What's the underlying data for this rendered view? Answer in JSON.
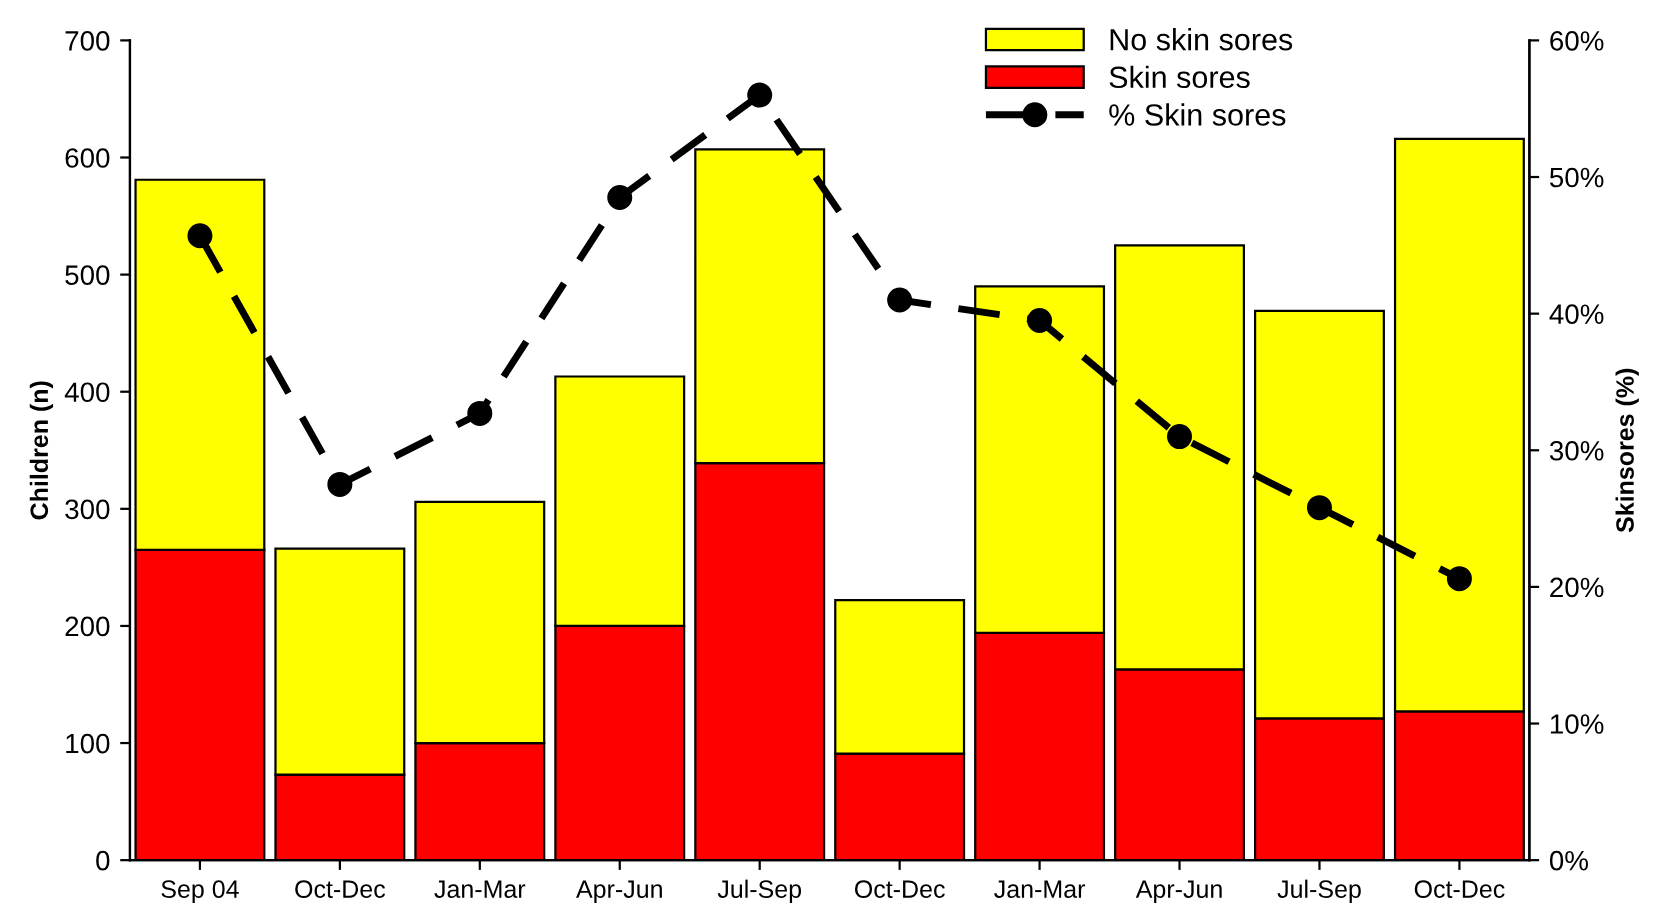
{
  "chart_data": {
    "type": "bar",
    "stacked": true,
    "ylabel": "Children (n)",
    "y2label": "Skinsores (%)",
    "categories": [
      "Sep 04",
      "Oct-Dec",
      "Jan-Mar",
      "Apr-Jun",
      "Jul-Sep",
      "Oct-Dec",
      "Jan-Mar",
      "Apr-Jun",
      "Jul-Sep",
      "Oct-Dec"
    ],
    "series": [
      {
        "name": "Skin sores",
        "color": "#ff0000",
        "values": [
          265,
          73,
          100,
          200,
          339,
          91,
          194,
          163,
          121,
          127
        ]
      },
      {
        "name": "No skin sores",
        "color": "#ffff00",
        "values": [
          316,
          193,
          206,
          213,
          268,
          131,
          296,
          362,
          348,
          489
        ]
      },
      {
        "name": "% Skin sores",
        "type": "line",
        "axis": "y2",
        "color": "#000000",
        "marker": "circle",
        "line_style": "dashed",
        "values": [
          45.7,
          27.5,
          32.7,
          48.5,
          56,
          41,
          39.5,
          31,
          25.8,
          20.6
        ]
      }
    ],
    "ylim": [
      0,
      700
    ],
    "yticks": [
      0,
      100,
      200,
      300,
      400,
      500,
      600,
      700
    ],
    "y2lim": [
      0,
      60
    ],
    "y2ticks": [
      {
        "value": 0,
        "label": "0%"
      },
      {
        "value": 10,
        "label": "10%"
      },
      {
        "value": 20,
        "label": "20%"
      },
      {
        "value": 30,
        "label": "30%"
      },
      {
        "value": 40,
        "label": "40%"
      },
      {
        "value": 50,
        "label": "50%"
      },
      {
        "value": 60,
        "label": "60%"
      }
    ],
    "legend": "top right",
    "grid": false
  }
}
